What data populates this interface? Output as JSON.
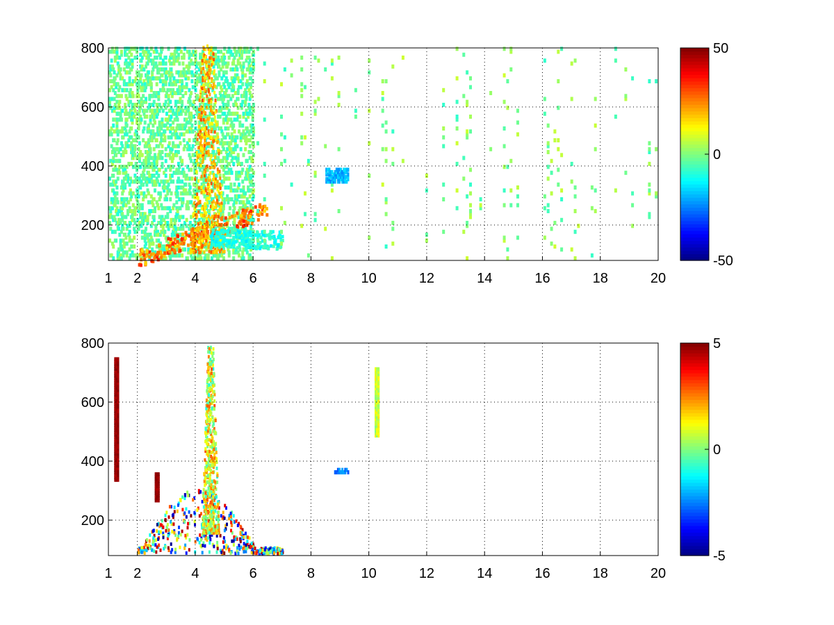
{
  "chart_data": [
    {
      "type": "heatmap",
      "xticks": [
        "1",
        "2",
        "4",
        "6",
        "8",
        "10",
        "12",
        "14",
        "16",
        "18",
        "20"
      ],
      "xtick_values": [
        1,
        2,
        4,
        6,
        8,
        10,
        12,
        14,
        16,
        18,
        20
      ],
      "yticks": [
        "200",
        "400",
        "600",
        "800"
      ],
      "ytick_values": [
        200,
        400,
        600,
        800
      ],
      "xlim": [
        1,
        20
      ],
      "ylim": [
        80,
        800
      ],
      "grid": true,
      "grid_style": "dotted",
      "colormap": "jet",
      "colorbar": {
        "min": -50,
        "max": 50,
        "ticks": [
          "50",
          "0",
          "-50"
        ],
        "tick_values": [
          50,
          0,
          -50
        ]
      },
      "features": [
        {
          "kind": "band",
          "x": [
            1.0,
            6.0
          ],
          "y": [
            80,
            800
          ],
          "density": 0.22,
          "value": [
            -10,
            5
          ]
        },
        {
          "kind": "ridge",
          "x": [
            2.0,
            6.5
          ],
          "y_start": 80,
          "y_end": 250,
          "value": [
            15,
            35
          ]
        },
        {
          "kind": "spike",
          "x": [
            3.8,
            5.0
          ],
          "y": [
            100,
            800
          ],
          "value": [
            10,
            30
          ]
        },
        {
          "kind": "ridge",
          "x": [
            4.5,
            7.0
          ],
          "y_start": 150,
          "y_end": 140,
          "value": [
            -15,
            -5
          ]
        },
        {
          "kind": "stripes",
          "x": [
            6.0,
            20.0
          ],
          "y": [
            80,
            800
          ],
          "density": 0.07,
          "value": [
            -8,
            8
          ]
        },
        {
          "kind": "blob",
          "x": [
            8.5,
            9.3
          ],
          "y": [
            340,
            380
          ],
          "value": [
            -25,
            -15
          ]
        }
      ]
    },
    {
      "type": "heatmap",
      "xticks": [
        "1",
        "2",
        "4",
        "6",
        "8",
        "10",
        "12",
        "14",
        "16",
        "18",
        "20"
      ],
      "xtick_values": [
        1,
        2,
        4,
        6,
        8,
        10,
        12,
        14,
        16,
        18,
        20
      ],
      "yticks": [
        "200",
        "400",
        "600",
        "800"
      ],
      "ytick_values": [
        200,
        400,
        600,
        800
      ],
      "xlim": [
        1,
        20
      ],
      "ylim": [
        80,
        800
      ],
      "grid": true,
      "grid_style": "dotted",
      "colormap": "jet",
      "colorbar": {
        "min": -5,
        "max": 5,
        "ticks": [
          "5",
          "0",
          "-5"
        ],
        "tick_values": [
          5,
          0,
          -5
        ]
      },
      "features": [
        {
          "kind": "triangle",
          "x": [
            2.0,
            7.0
          ],
          "y": [
            80,
            300
          ],
          "density": 0.5,
          "value": [
            -5,
            5
          ]
        },
        {
          "kind": "spike",
          "x": [
            4.2,
            4.8
          ],
          "y": [
            150,
            780
          ],
          "value": [
            -1,
            3
          ]
        },
        {
          "kind": "blob",
          "x": [
            8.8,
            9.3
          ],
          "y": [
            355,
            370
          ],
          "value": [
            -3,
            -2
          ]
        },
        {
          "kind": "column",
          "x": [
            10.2,
            10.35
          ],
          "y": [
            480,
            710
          ],
          "value": [
            0,
            1.5
          ]
        },
        {
          "kind": "column",
          "x": [
            1.2,
            1.3
          ],
          "y": [
            330,
            740
          ],
          "value": [
            4.5,
            5
          ]
        },
        {
          "kind": "column",
          "x": [
            2.6,
            2.7
          ],
          "y": [
            260,
            350
          ],
          "value": [
            4.5,
            5
          ]
        }
      ]
    }
  ]
}
